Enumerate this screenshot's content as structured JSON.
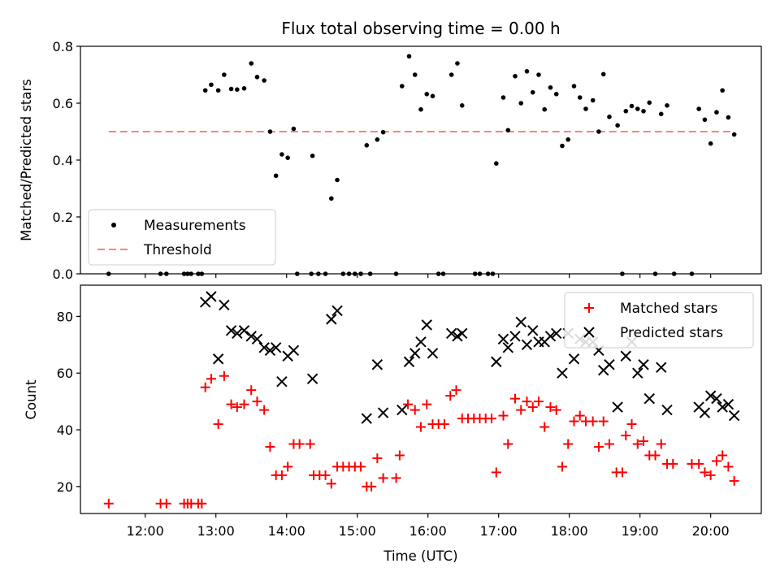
{
  "figure": {
    "title": "Flux total observing time = 0.00 h",
    "xlabel": "Time (UTC)"
  },
  "chart_data": [
    {
      "type": "scatter",
      "ylabel": "Matched/Predicted stars",
      "xlim": [
        "11:05",
        "20:43"
      ],
      "ylim": [
        0,
        0.8
      ],
      "yticks": [
        0.0,
        0.2,
        0.4,
        0.6,
        0.8
      ],
      "ytick_labels": [
        "0.0",
        "0.2",
        "0.4",
        "0.6",
        "0.8"
      ],
      "legend_position": "lower-left",
      "series": [
        {
          "name": "Measurements",
          "marker": "dot",
          "color": "#000000",
          "points": [
            [
              "11:29",
              0.0
            ],
            [
              "12:13",
              0.0
            ],
            [
              "12:18",
              0.0
            ],
            [
              "12:33",
              0.0
            ],
            [
              "12:36",
              0.0
            ],
            [
              "12:39",
              0.0
            ],
            [
              "12:45",
              0.0
            ],
            [
              "12:48",
              0.0
            ],
            [
              "12:51",
              0.645
            ],
            [
              "12:56",
              0.665
            ],
            [
              "13:02",
              0.645
            ],
            [
              "13:07",
              0.7
            ],
            [
              "13:13",
              0.65
            ],
            [
              "13:18",
              0.648
            ],
            [
              "13:24",
              0.652
            ],
            [
              "13:30",
              0.74
            ],
            [
              "13:35",
              0.692
            ],
            [
              "13:41",
              0.68
            ],
            [
              "13:46",
              0.5
            ],
            [
              "13:51",
              0.345
            ],
            [
              "13:56",
              0.42
            ],
            [
              "14:01",
              0.408
            ],
            [
              "14:06",
              0.51
            ],
            [
              "14:09",
              0.0
            ],
            [
              "14:21",
              0.0
            ],
            [
              "14:22",
              0.415
            ],
            [
              "14:27",
              0.0
            ],
            [
              "14:33",
              0.0
            ],
            [
              "14:38",
              0.265
            ],
            [
              "14:43",
              0.33
            ],
            [
              "14:48",
              0.0
            ],
            [
              "14:53",
              0.0
            ],
            [
              "14:58",
              0.0
            ],
            [
              "15:03",
              0.0
            ],
            [
              "15:08",
              0.452
            ],
            [
              "15:11",
              0.0
            ],
            [
              "15:17",
              0.472
            ],
            [
              "15:22",
              0.498
            ],
            [
              "15:33",
              0.0
            ],
            [
              "15:38",
              0.66
            ],
            [
              "15:44",
              0.765
            ],
            [
              "15:49",
              0.7
            ],
            [
              "15:54",
              0.578
            ],
            [
              "15:59",
              0.632
            ],
            [
              "16:04",
              0.625
            ],
            [
              "16:09",
              0.0
            ],
            [
              "16:13",
              0.0
            ],
            [
              "16:20",
              0.7
            ],
            [
              "16:25",
              0.74
            ],
            [
              "16:29",
              0.592
            ],
            [
              "16:40",
              0.0
            ],
            [
              "16:44",
              0.0
            ],
            [
              "16:51",
              0.0
            ],
            [
              "16:55",
              0.0
            ],
            [
              "16:58",
              0.388
            ],
            [
              "17:04",
              0.62
            ],
            [
              "17:08",
              0.505
            ],
            [
              "17:14",
              0.695
            ],
            [
              "17:19",
              0.6
            ],
            [
              "17:24",
              0.712
            ],
            [
              "17:29",
              0.638
            ],
            [
              "17:34",
              0.7
            ],
            [
              "17:39",
              0.578
            ],
            [
              "17:44",
              0.655
            ],
            [
              "17:49",
              0.632
            ],
            [
              "17:54",
              0.45
            ],
            [
              "17:59",
              0.472
            ],
            [
              "18:04",
              0.66
            ],
            [
              "18:09",
              0.62
            ],
            [
              "18:14",
              0.58
            ],
            [
              "18:20",
              0.61
            ],
            [
              "18:25",
              0.5
            ],
            [
              "18:29",
              0.702
            ],
            [
              "18:34",
              0.552
            ],
            [
              "18:41",
              0.522
            ],
            [
              "18:45",
              0.0
            ],
            [
              "18:48",
              0.572
            ],
            [
              "18:53",
              0.59
            ],
            [
              "18:58",
              0.58
            ],
            [
              "19:03",
              0.572
            ],
            [
              "19:08",
              0.602
            ],
            [
              "19:13",
              0.0
            ],
            [
              "19:18",
              0.562
            ],
            [
              "19:23",
              0.592
            ],
            [
              "19:29",
              0.0
            ],
            [
              "19:44",
              0.0
            ],
            [
              "19:50",
              0.58
            ],
            [
              "19:55",
              0.542
            ],
            [
              "20:00",
              0.458
            ],
            [
              "20:05",
              0.568
            ],
            [
              "20:10",
              0.645
            ],
            [
              "20:15",
              0.55
            ],
            [
              "20:20",
              0.49
            ]
          ]
        },
        {
          "name": "Threshold",
          "marker": "dashed-line",
          "color": "#ff7f7f",
          "points": [
            [
              "11:29",
              0.5
            ],
            [
              "20:20",
              0.5
            ]
          ]
        }
      ]
    },
    {
      "type": "scatter",
      "ylabel": "Count",
      "xlim": [
        "11:05",
        "20:43"
      ],
      "ylim": [
        10.5,
        91
      ],
      "yticks": [
        20,
        40,
        60,
        80
      ],
      "ytick_labels": [
        "20",
        "40",
        "60",
        "80"
      ],
      "xticks": [
        "12:00",
        "13:00",
        "14:00",
        "15:00",
        "16:00",
        "17:00",
        "18:00",
        "19:00",
        "20:00"
      ],
      "legend_position": "top-right",
      "series": [
        {
          "name": "Matched stars",
          "marker": "plus",
          "color": "#ff0000",
          "points": [
            [
              "11:29",
              14
            ],
            [
              "12:13",
              14
            ],
            [
              "12:18",
              14
            ],
            [
              "12:33",
              14
            ],
            [
              "12:36",
              14
            ],
            [
              "12:39",
              14
            ],
            [
              "12:45",
              14
            ],
            [
              "12:48",
              14
            ],
            [
              "12:51",
              55
            ],
            [
              "12:56",
              58
            ],
            [
              "13:02",
              42
            ],
            [
              "13:07",
              59
            ],
            [
              "13:13",
              49
            ],
            [
              "13:18",
              48
            ],
            [
              "13:24",
              49
            ],
            [
              "13:30",
              54
            ],
            [
              "13:35",
              50
            ],
            [
              "13:41",
              47
            ],
            [
              "13:46",
              34
            ],
            [
              "13:51",
              24
            ],
            [
              "13:56",
              24
            ],
            [
              "14:01",
              27
            ],
            [
              "14:06",
              35
            ],
            [
              "14:11",
              35
            ],
            [
              "14:20",
              35
            ],
            [
              "14:23",
              24
            ],
            [
              "14:28",
              24
            ],
            [
              "14:33",
              24
            ],
            [
              "14:38",
              21
            ],
            [
              "14:43",
              27
            ],
            [
              "14:48",
              27
            ],
            [
              "14:53",
              27
            ],
            [
              "14:58",
              27
            ],
            [
              "15:03",
              27
            ],
            [
              "15:08",
              20
            ],
            [
              "15:12",
              20
            ],
            [
              "15:17",
              30
            ],
            [
              "15:22",
              23
            ],
            [
              "15:33",
              23
            ],
            [
              "15:36",
              31
            ],
            [
              "15:43",
              49
            ],
            [
              "15:49",
              47
            ],
            [
              "15:54",
              41
            ],
            [
              "15:59",
              49
            ],
            [
              "16:04",
              42
            ],
            [
              "16:09",
              42
            ],
            [
              "16:14",
              42
            ],
            [
              "16:19",
              52
            ],
            [
              "16:24",
              54
            ],
            [
              "16:29",
              44
            ],
            [
              "16:34",
              44
            ],
            [
              "16:39",
              44
            ],
            [
              "16:44",
              44
            ],
            [
              "16:49",
              44
            ],
            [
              "16:54",
              44
            ],
            [
              "16:58",
              25
            ],
            [
              "17:04",
              45
            ],
            [
              "17:08",
              35
            ],
            [
              "17:14",
              51
            ],
            [
              "17:19",
              47
            ],
            [
              "17:24",
              50
            ],
            [
              "17:29",
              48
            ],
            [
              "17:34",
              50
            ],
            [
              "17:39",
              41
            ],
            [
              "17:44",
              48
            ],
            [
              "17:49",
              47
            ],
            [
              "17:54",
              27
            ],
            [
              "17:59",
              35
            ],
            [
              "18:04",
              43
            ],
            [
              "18:09",
              45
            ],
            [
              "18:14",
              43
            ],
            [
              "18:20",
              43
            ],
            [
              "18:25",
              34
            ],
            [
              "18:29",
              43
            ],
            [
              "18:34",
              35
            ],
            [
              "18:40",
              25
            ],
            [
              "18:45",
              25
            ],
            [
              "18:48",
              38
            ],
            [
              "18:53",
              42
            ],
            [
              "18:58",
              35
            ],
            [
              "19:03",
              36
            ],
            [
              "19:08",
              31
            ],
            [
              "19:13",
              31
            ],
            [
              "19:18",
              35
            ],
            [
              "19:23",
              28
            ],
            [
              "19:28",
              28
            ],
            [
              "19:44",
              28
            ],
            [
              "19:50",
              28
            ],
            [
              "19:55",
              25
            ],
            [
              "20:00",
              24
            ],
            [
              "20:05",
              29
            ],
            [
              "20:10",
              31
            ],
            [
              "20:15",
              27
            ],
            [
              "20:20",
              22
            ]
          ]
        },
        {
          "name": "Predicted stars",
          "marker": "x",
          "color": "#000000",
          "points": [
            [
              "12:51",
              85
            ],
            [
              "12:56",
              87
            ],
            [
              "13:02",
              65
            ],
            [
              "13:07",
              84
            ],
            [
              "13:13",
              75
            ],
            [
              "13:18",
              74
            ],
            [
              "13:24",
              75
            ],
            [
              "13:30",
              73
            ],
            [
              "13:35",
              72
            ],
            [
              "13:41",
              69
            ],
            [
              "13:46",
              68
            ],
            [
              "13:51",
              69
            ],
            [
              "13:56",
              57
            ],
            [
              "14:01",
              66
            ],
            [
              "14:06",
              68
            ],
            [
              "14:22",
              58
            ],
            [
              "14:38",
              79
            ],
            [
              "14:43",
              82
            ],
            [
              "15:08",
              44
            ],
            [
              "15:17",
              63
            ],
            [
              "15:22",
              46
            ],
            [
              "15:38",
              47
            ],
            [
              "15:44",
              64
            ],
            [
              "15:49",
              67
            ],
            [
              "15:54",
              71
            ],
            [
              "15:59",
              77
            ],
            [
              "16:04",
              67
            ],
            [
              "16:20",
              74
            ],
            [
              "16:25",
              73
            ],
            [
              "16:29",
              74
            ],
            [
              "16:58",
              64
            ],
            [
              "17:04",
              72
            ],
            [
              "17:08",
              69
            ],
            [
              "17:14",
              73
            ],
            [
              "17:19",
              78
            ],
            [
              "17:24",
              70
            ],
            [
              "17:29",
              75
            ],
            [
              "17:34",
              71
            ],
            [
              "17:39",
              71
            ],
            [
              "17:44",
              73
            ],
            [
              "17:49",
              74
            ],
            [
              "17:54",
              60
            ],
            [
              "17:59",
              74
            ],
            [
              "18:04",
              65
            ],
            [
              "18:09",
              72
            ],
            [
              "18:14",
              71
            ],
            [
              "18:20",
              71
            ],
            [
              "18:25",
              68
            ],
            [
              "18:29",
              61
            ],
            [
              "18:34",
              63
            ],
            [
              "18:41",
              48
            ],
            [
              "18:48",
              66
            ],
            [
              "18:53",
              71
            ],
            [
              "18:58",
              60
            ],
            [
              "19:03",
              63
            ],
            [
              "19:08",
              51
            ],
            [
              "19:18",
              62
            ],
            [
              "19:23",
              47
            ],
            [
              "19:50",
              48
            ],
            [
              "19:55",
              46
            ],
            [
              "20:00",
              52
            ],
            [
              "20:05",
              51
            ],
            [
              "20:10",
              48
            ],
            [
              "20:15",
              49
            ],
            [
              "20:20",
              45
            ]
          ]
        }
      ]
    }
  ]
}
